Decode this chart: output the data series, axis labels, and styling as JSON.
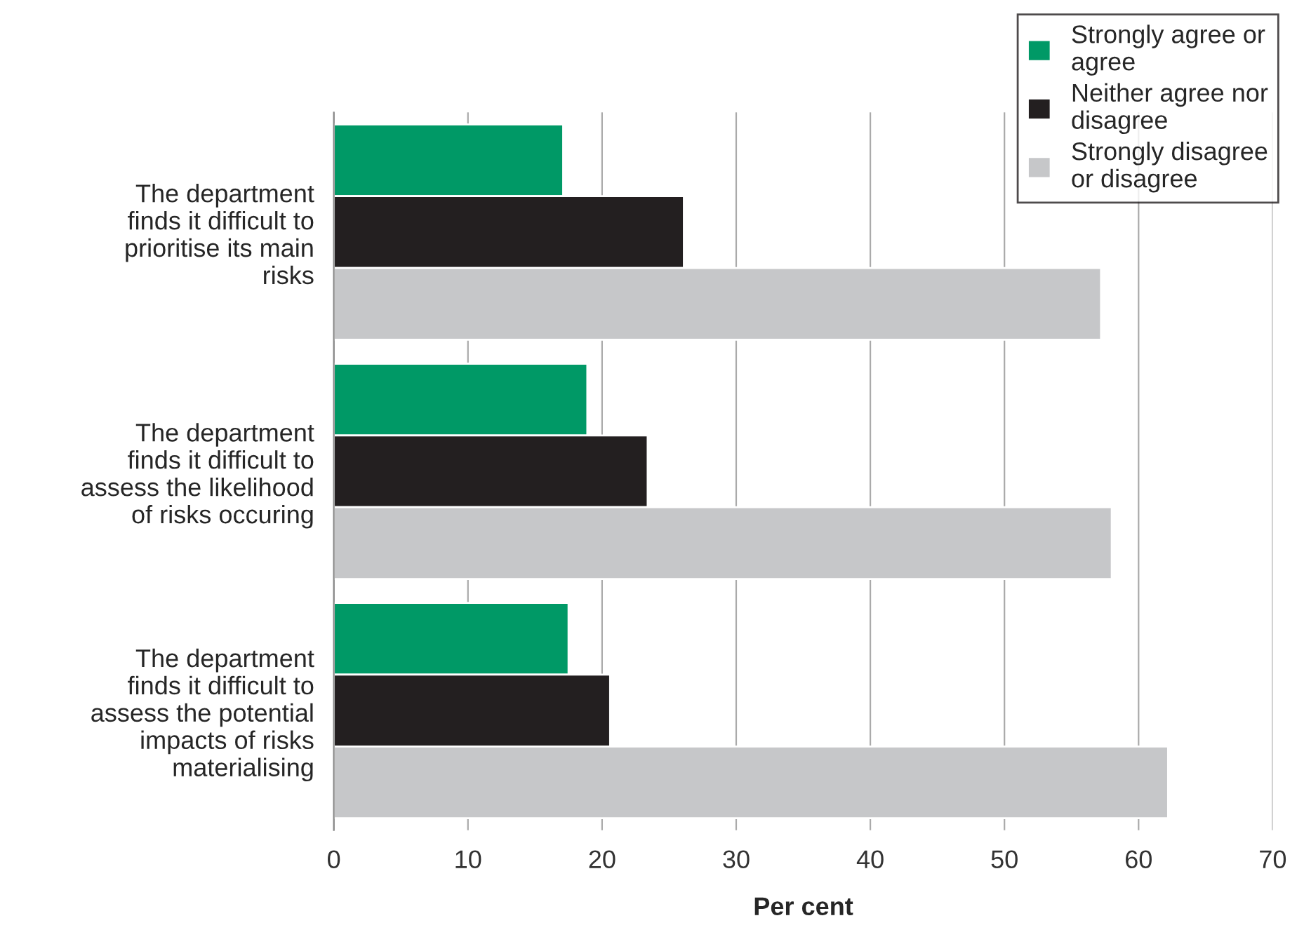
{
  "chart_data": {
    "type": "bar",
    "orientation": "horizontal",
    "xlabel": "Per cent",
    "categories": [
      "The department\nfinds it difficult to\nprioritise its main\nrisks",
      "The department\nfinds it difficult to\nassess the likelihood\nof risks occuring",
      "The department\nfinds it difficult to\nassess the potential\nimpacts of risks\nmaterialising"
    ],
    "series": [
      {
        "name": "Strongly agree or\nagree",
        "color": "#009966",
        "values": [
          17.1,
          18.9,
          17.5
        ]
      },
      {
        "name": "Neither agree nor\ndisagree",
        "color": "#231f20",
        "values": [
          26.1,
          23.4,
          20.6
        ]
      },
      {
        "name": "Strongly disagree\nor disagree",
        "color": "#c6c7c9",
        "values": [
          57.2,
          58,
          62.2
        ]
      }
    ],
    "xlim": [
      0,
      70
    ],
    "xticks": [
      0,
      10,
      20,
      30,
      40,
      50,
      60,
      70
    ],
    "grid": "x",
    "legend": "top right"
  }
}
